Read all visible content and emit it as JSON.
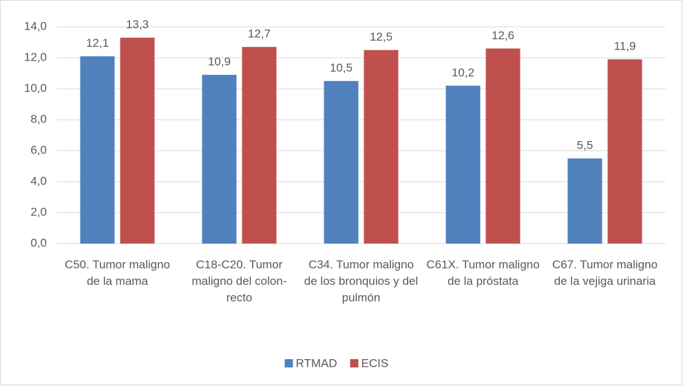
{
  "chart_data": {
    "type": "bar",
    "categories": [
      "C50. Tumor maligno de la mama",
      "C18-C20. Tumor maligno del colon- recto",
      "C34. Tumor maligno de los bronquios y del pulmón",
      "C61X. Tumor maligno de la próstata",
      "C67. Tumor maligno de la vejiga urinaria"
    ],
    "series": [
      {
        "name": "RTMAD",
        "color": "#4f81bd",
        "values": [
          12.1,
          10.9,
          10.5,
          10.2,
          5.5
        ],
        "value_labels": [
          "12,1",
          "10,9",
          "10,5",
          "10,2",
          "5,5"
        ]
      },
      {
        "name": "ECIS",
        "color": "#c0504d",
        "values": [
          13.3,
          12.7,
          12.5,
          12.6,
          11.9
        ],
        "value_labels": [
          "13,3",
          "12,7",
          "12,5",
          "12,6",
          "11,9"
        ]
      }
    ],
    "ylim": [
      0,
      14
    ],
    "yticks": [
      {
        "value": 0,
        "label": "0,0"
      },
      {
        "value": 2,
        "label": "2,0"
      },
      {
        "value": 4,
        "label": "4,0"
      },
      {
        "value": 6,
        "label": "6,0"
      },
      {
        "value": 8,
        "label": "8,0"
      },
      {
        "value": 10,
        "label": "10,0"
      },
      {
        "value": 12,
        "label": "12,0"
      },
      {
        "value": 14,
        "label": "14,0"
      }
    ],
    "grid": true,
    "legend": "bottom"
  }
}
